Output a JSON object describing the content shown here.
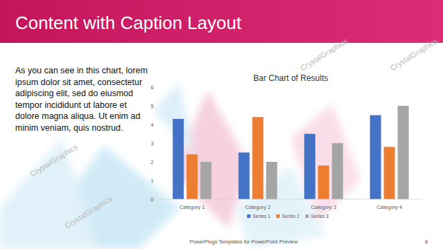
{
  "slide": {
    "title": "Content with Caption Layout",
    "caption": [
      "As you can see in this chart, lorem",
      "ipsum dolor sit amet, consectetur",
      "adipiscing elit, sed do eiusmod",
      "tempor incididunt ut labore et",
      "dolore magna aliqua. Ut enim ad",
      "minim veniam, quis nostrud."
    ],
    "footer": "PowerPlugs Templates for PowerPoint Preview",
    "page_number": 8,
    "watermark": "CrystalGraphics"
  },
  "chart_data": {
    "type": "bar",
    "title": "Bar Chart of Results",
    "categories": [
      "Category 1",
      "Category 2",
      "Category 3",
      "Category 4"
    ],
    "series": [
      {
        "name": "Series 1",
        "color": "#4472c4",
        "values": [
          4.3,
          2.5,
          3.5,
          4.5
        ]
      },
      {
        "name": "Series 2",
        "color": "#ed7d31",
        "values": [
          2.4,
          4.4,
          1.8,
          2.8
        ]
      },
      {
        "name": "Series 3",
        "color": "#a5a5a5",
        "values": [
          2.0,
          2.0,
          3.0,
          5.0
        ]
      }
    ],
    "ylim": [
      0,
      6
    ],
    "yticks": [
      0,
      1,
      2,
      3,
      4,
      5,
      6
    ],
    "grid": false,
    "legend": "bottom"
  }
}
